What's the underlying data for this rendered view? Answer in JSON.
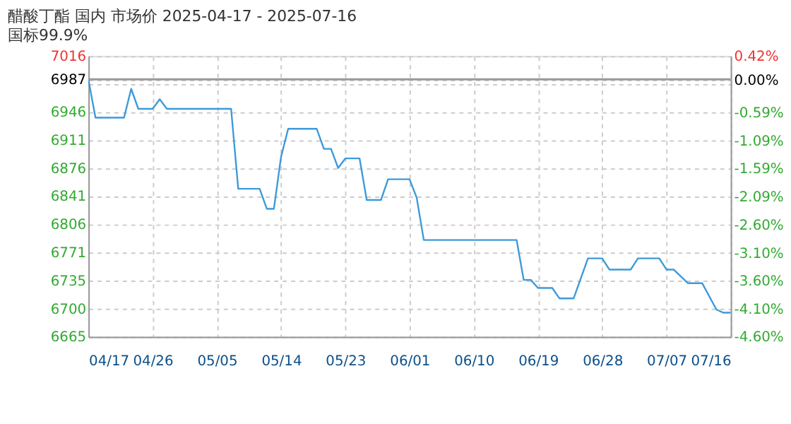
{
  "chart_data": {
    "type": "line",
    "title": "醋酸丁酯 国内 市场价 2025-04-17 - 2025-07-16",
    "subtitle": "国标99.9%",
    "x": [
      "2025-04-17",
      "2025-04-18",
      "2025-04-22",
      "2025-04-23",
      "2025-04-24",
      "2025-04-26",
      "2025-04-27",
      "2025-04-28",
      "2025-05-07",
      "2025-05-08",
      "2025-05-11",
      "2025-05-12",
      "2025-05-13",
      "2025-05-14",
      "2025-05-15",
      "2025-05-19",
      "2025-05-20",
      "2025-05-21",
      "2025-05-22",
      "2025-05-23",
      "2025-05-25",
      "2025-05-26",
      "2025-05-28",
      "2025-05-29",
      "2025-06-01",
      "2025-06-02",
      "2025-06-03",
      "2025-06-16",
      "2025-06-17",
      "2025-06-18",
      "2025-06-19",
      "2025-06-21",
      "2025-06-22",
      "2025-06-24",
      "2025-06-26",
      "2025-06-28",
      "2025-06-29",
      "2025-07-02",
      "2025-07-03",
      "2025-07-06",
      "2025-07-07",
      "2025-07-08",
      "2025-07-10",
      "2025-07-12",
      "2025-07-14",
      "2025-07-15",
      "2025-07-16"
    ],
    "series": [
      {
        "color": "#3d9ad9",
        "values": [
          6987,
          6939,
          6939,
          6975,
          6950,
          6950,
          6962,
          6950,
          6950,
          6850,
          6850,
          6825,
          6825,
          6890,
          6925,
          6925,
          6900,
          6900,
          6876,
          6888,
          6888,
          6836,
          6836,
          6862,
          6862,
          6839,
          6786,
          6786,
          6736,
          6736,
          6726,
          6726,
          6713,
          6713,
          6763,
          6763,
          6749,
          6749,
          6763,
          6763,
          6749,
          6749,
          6732,
          6732,
          6699,
          6695,
          6695
        ]
      }
    ],
    "xlim": [
      "2025-04-17",
      "2025-07-16"
    ],
    "xticks": [
      {
        "value": "2025-04-17",
        "label": "04/17"
      },
      {
        "value": "2025-04-26",
        "label": "04/26"
      },
      {
        "value": "2025-05-05",
        "label": "05/05"
      },
      {
        "value": "2025-05-14",
        "label": "05/14"
      },
      {
        "value": "2025-05-23",
        "label": "05/23"
      },
      {
        "value": "2025-06-01",
        "label": "06/01"
      },
      {
        "value": "2025-06-10",
        "label": "06/10"
      },
      {
        "value": "2025-06-19",
        "label": "06/19"
      },
      {
        "value": "2025-06-28",
        "label": "06/28"
      },
      {
        "value": "2025-07-07",
        "label": "07/07"
      },
      {
        "value": "2025-07-16",
        "label": "07/16"
      }
    ],
    "ylim": [
      6665,
      7016
    ],
    "yticks": [
      6665,
      6700,
      6735,
      6771,
      6806,
      6841,
      6876,
      6911,
      6946,
      {
        "value": 6981,
        "label": null
      },
      6987,
      7016
    ],
    "y2lim": [
      -4.6,
      0.42
    ],
    "y2ticks": [
      {
        "value": -4.6,
        "label": "-4.60%"
      },
      {
        "value": -4.1,
        "label": "-4.10%"
      },
      {
        "value": -3.6,
        "label": "-3.60%"
      },
      {
        "value": -3.1,
        "label": "-3.10%"
      },
      {
        "value": -2.6,
        "label": "-2.60%"
      },
      {
        "value": -2.09,
        "label": "-2.09%"
      },
      {
        "value": -1.59,
        "label": "-1.59%"
      },
      {
        "value": -1.09,
        "label": "-1.09%"
      },
      {
        "value": -0.59,
        "label": "-0.59%"
      },
      {
        "value": 0,
        "label": "0.00%"
      },
      {
        "value": 0.42,
        "label": "0.42%"
      }
    ],
    "ref_lines": [
      {
        "axis": "y",
        "value": 6987,
        "color": "#999999"
      }
    ],
    "grid": true,
    "marker": "none",
    "line_style": "solid"
  }
}
